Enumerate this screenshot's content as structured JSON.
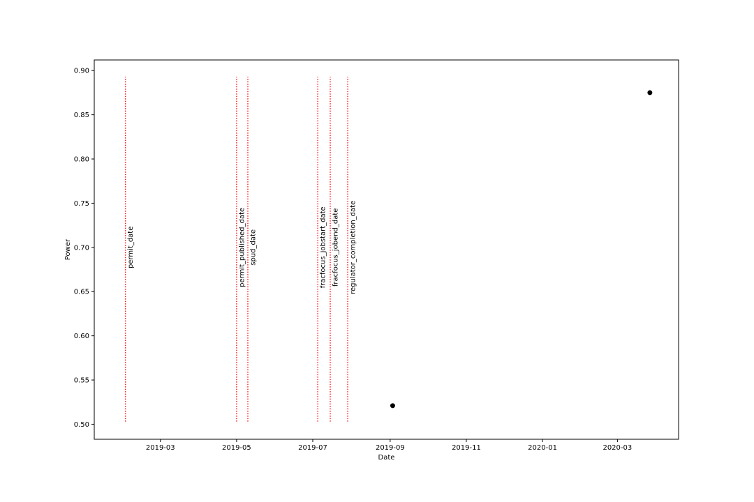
{
  "chart_data": {
    "type": "scatter",
    "title": "",
    "xlabel": "Date",
    "ylabel": "Power",
    "x_scale": "date",
    "xlim": [
      "2019-01-07",
      "2020-04-19"
    ],
    "ylim": [
      0.483,
      0.912
    ],
    "grid": false,
    "legend": "none",
    "x_ticks": [
      {
        "date": "2019-03-01",
        "label": "2019-03"
      },
      {
        "date": "2019-05-01",
        "label": "2019-05"
      },
      {
        "date": "2019-07-01",
        "label": "2019-07"
      },
      {
        "date": "2019-09-01",
        "label": "2019-09"
      },
      {
        "date": "2019-11-01",
        "label": "2019-11"
      },
      {
        "date": "2020-01-01",
        "label": "2020-01"
      },
      {
        "date": "2020-03-01",
        "label": "2020-03"
      }
    ],
    "y_ticks": [
      {
        "value": 0.5,
        "label": "0.50"
      },
      {
        "value": 0.55,
        "label": "0.55"
      },
      {
        "value": 0.6,
        "label": "0.60"
      },
      {
        "value": 0.65,
        "label": "0.65"
      },
      {
        "value": 0.7,
        "label": "0.70"
      },
      {
        "value": 0.75,
        "label": "0.75"
      },
      {
        "value": 0.8,
        "label": "0.80"
      },
      {
        "value": 0.85,
        "label": "0.85"
      },
      {
        "value": 0.9,
        "label": "0.90"
      }
    ],
    "series": [
      {
        "color": "#000000",
        "points": [
          {
            "x": "2019-09-03",
            "y": 0.521
          },
          {
            "x": "2020-03-27",
            "y": 0.875
          }
        ]
      }
    ],
    "event_lines": {
      "color": "#ff0000",
      "style": "dotted",
      "y_range": [
        0.503,
        0.893
      ],
      "items": [
        {
          "date": "2019-02-01",
          "label": "permit_date",
          "label_y": 0.7
        },
        {
          "date": "2019-05-01",
          "label": "permit_published_date",
          "label_y": 0.7
        },
        {
          "date": "2019-05-10",
          "label": "spud_date",
          "label_y": 0.7
        },
        {
          "date": "2019-07-05",
          "label": "fracfocus_jobstart_date",
          "label_y": 0.7
        },
        {
          "date": "2019-07-15",
          "label": "fracfocus_jobend_date",
          "label_y": 0.7
        },
        {
          "date": "2019-07-29",
          "label": "regulator_completion_date",
          "label_y": 0.7
        }
      ]
    }
  }
}
